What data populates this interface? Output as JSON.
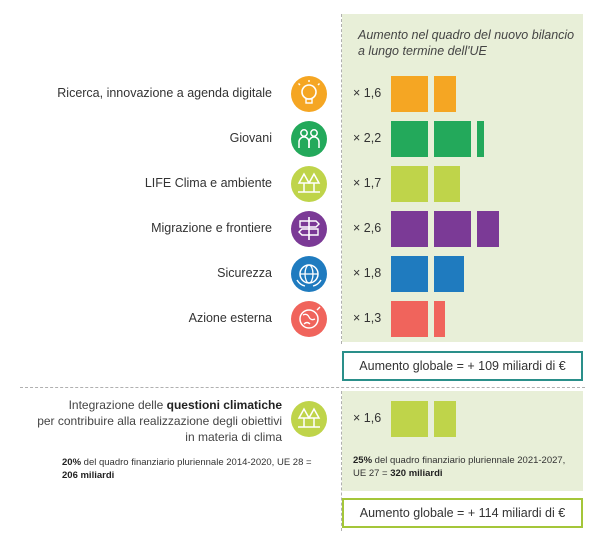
{
  "header": "Aumento nel quadro del nuovo bilancio a lungo termine dell'UE",
  "chart_data": {
    "type": "bar",
    "categories": [
      "Ricerca, innovazione a agenda digitale",
      "Giovani",
      "LIFE Clima e ambiente",
      "Migrazione e frontiere",
      "Sicurezza",
      "Azione esterna"
    ],
    "values": [
      1.6,
      2.2,
      1.7,
      2.6,
      1.8,
      1.3
    ],
    "value_labels": [
      "× 1,6",
      "× 2,2",
      "× 1,7",
      "× 2,6",
      "× 1,8",
      "× 1,3"
    ],
    "colors": [
      "#f5a623",
      "#23a95b",
      "#bfd44a",
      "#7b3a96",
      "#1f7bbf",
      "#f0645c"
    ],
    "icons": [
      "lightbulb-icon",
      "youth-icon",
      "trees-icon",
      "signpost-icon",
      "security-icon",
      "globe-icon"
    ]
  },
  "total_1": "Aumento globale = + 109 miliardi di €",
  "climate": {
    "line1_pre": "Integrazione delle ",
    "line1_bold": "questioni climatiche",
    "line2": "per contribuire alla realizzazione degli obiettivi",
    "line3": "in materia di clima",
    "multiplier": "× 1,6",
    "value": 1.6,
    "color": "#bfd44a",
    "icon": "trees-icon",
    "note_left_pct": "20%",
    "note_left_mid": " del quadro finanziario pluriennale 2014-2020, UE 28 = ",
    "note_left_amount": "206 miliardi",
    "note_right_pct": "25%",
    "note_right_mid": " del quadro finanziario pluriennale 2021-2027, UE 27 = ",
    "note_right_amount": "320 miliardi"
  },
  "total_2": "Aumento globale = + 114 miliardi di €"
}
